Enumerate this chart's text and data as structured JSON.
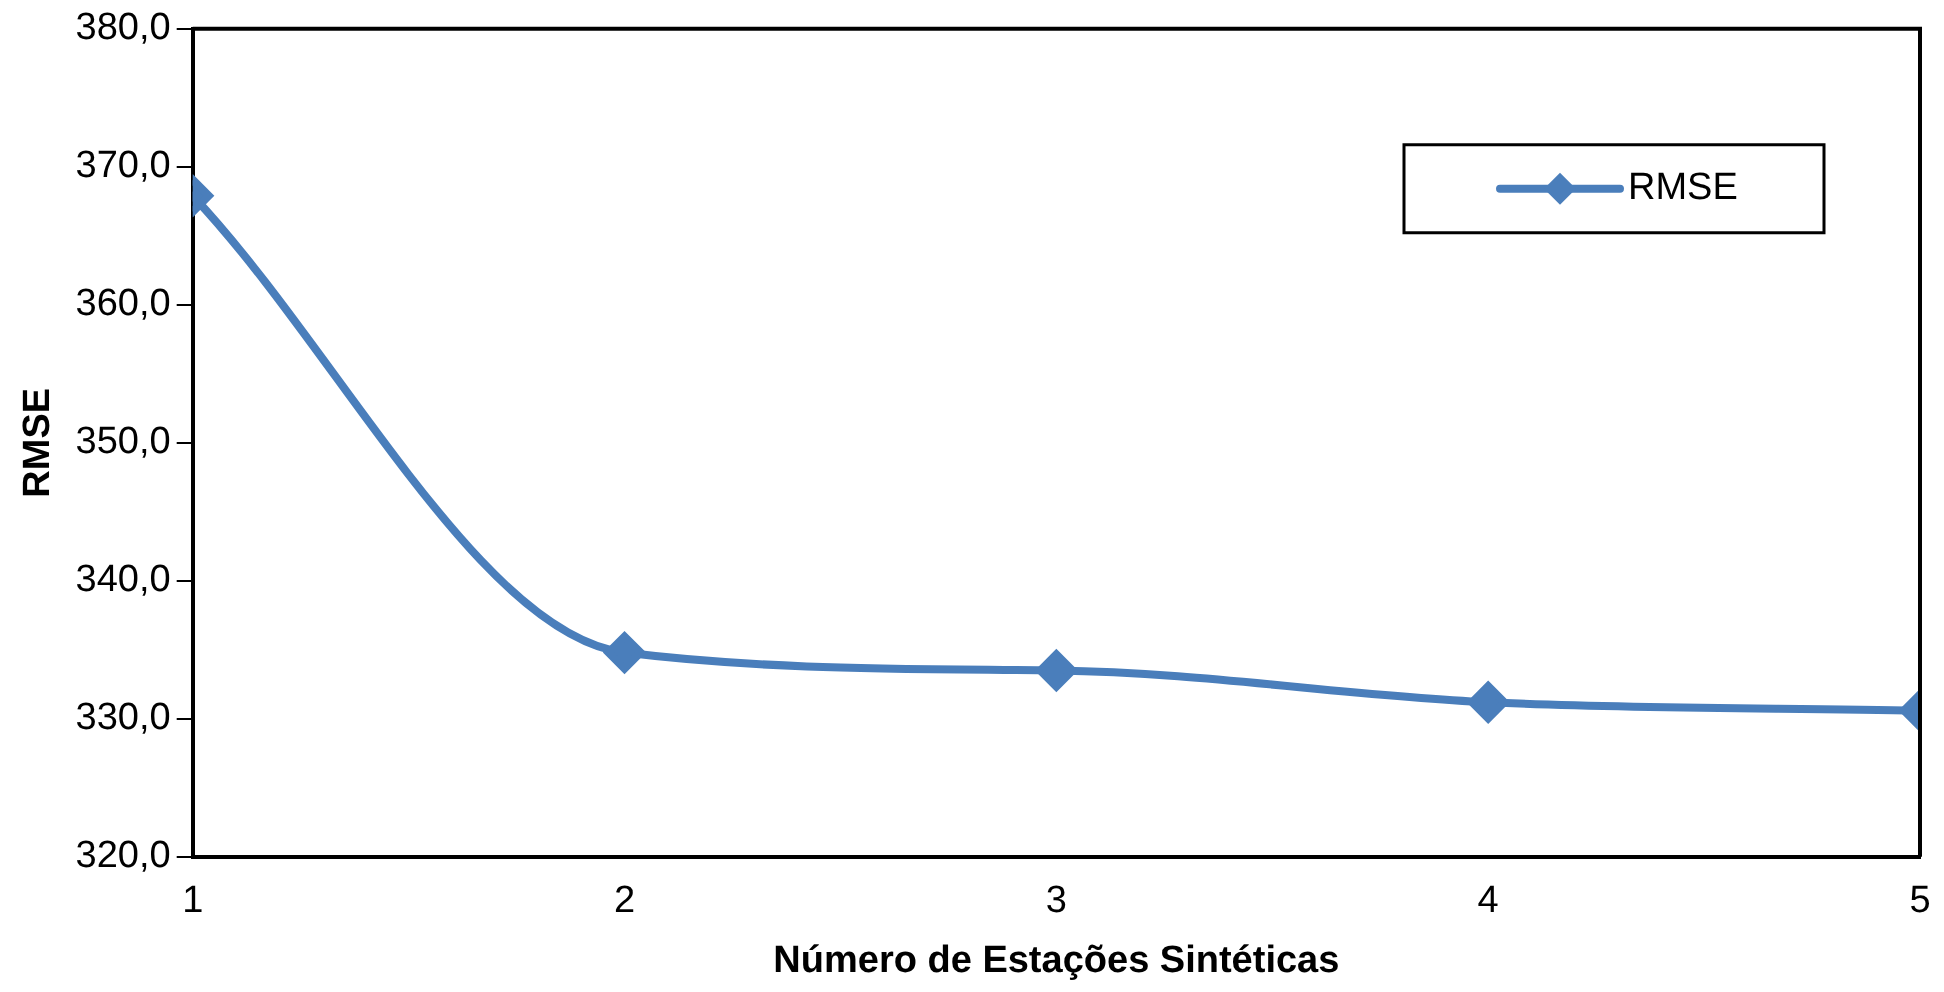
{
  "chart_data": {
    "type": "line",
    "xlabel": "Número de Estações Sintéticas",
    "ylabel": "RMSE",
    "x": [
      1,
      2,
      3,
      4,
      5
    ],
    "xlim": [
      1,
      5
    ],
    "xticks": [
      1,
      2,
      3,
      4,
      5
    ],
    "ylim": [
      320,
      380
    ],
    "yticks": [
      {
        "value": 320,
        "label": "320,0"
      },
      {
        "value": 330,
        "label": "330,0"
      },
      {
        "value": 340,
        "label": "340,0"
      },
      {
        "value": 350,
        "label": "350,0"
      },
      {
        "value": 360,
        "label": "360,0"
      },
      {
        "value": 370,
        "label": "370,0"
      },
      {
        "value": 380,
        "label": "380,0"
      }
    ],
    "series": [
      {
        "name": "RMSE",
        "color": "#4a7ebb",
        "values": [
          367.9,
          334.8,
          333.5,
          331.2,
          330.6
        ]
      }
    ],
    "marker": "diamond",
    "line_style": "solid",
    "legend": "top right",
    "grid": false
  }
}
